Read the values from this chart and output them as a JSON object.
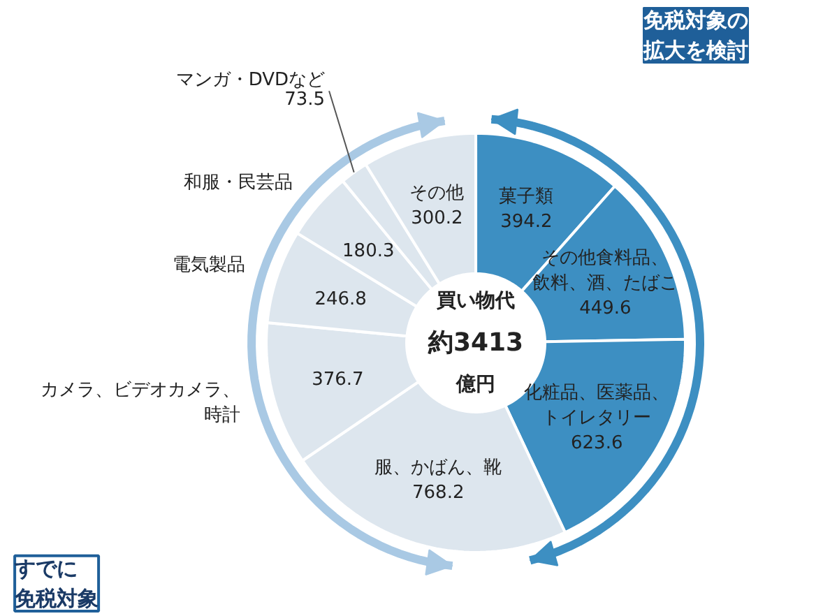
{
  "chart_data": {
    "type": "donut",
    "categories": [
      "菓子類",
      "その他食料品、飲料、酒、たばこ",
      "化粧品、医薬品、トイレタリー",
      "服、かばん、靴",
      "カメラ、ビデオカメラ、時計",
      "電気製品",
      "和服・民芸品",
      "マンガ・DVDなど",
      "その他"
    ],
    "values": [
      394.2,
      449.6,
      623.6,
      768.2,
      376.7,
      246.8,
      180.3,
      73.5,
      300.2
    ],
    "colors": [
      "#3d8fc2",
      "#3d8fc2",
      "#3d8fc2",
      "#dde6ee",
      "#dde6ee",
      "#dde6ee",
      "#dde6ee",
      "#dde6ee",
      "#dde6ee"
    ],
    "data_labels": true,
    "annotations": [
      "買い物代",
      "約3413",
      "億円",
      "免税対象の拡大を検討",
      "すでに",
      "免税対象"
    ]
  }
}
